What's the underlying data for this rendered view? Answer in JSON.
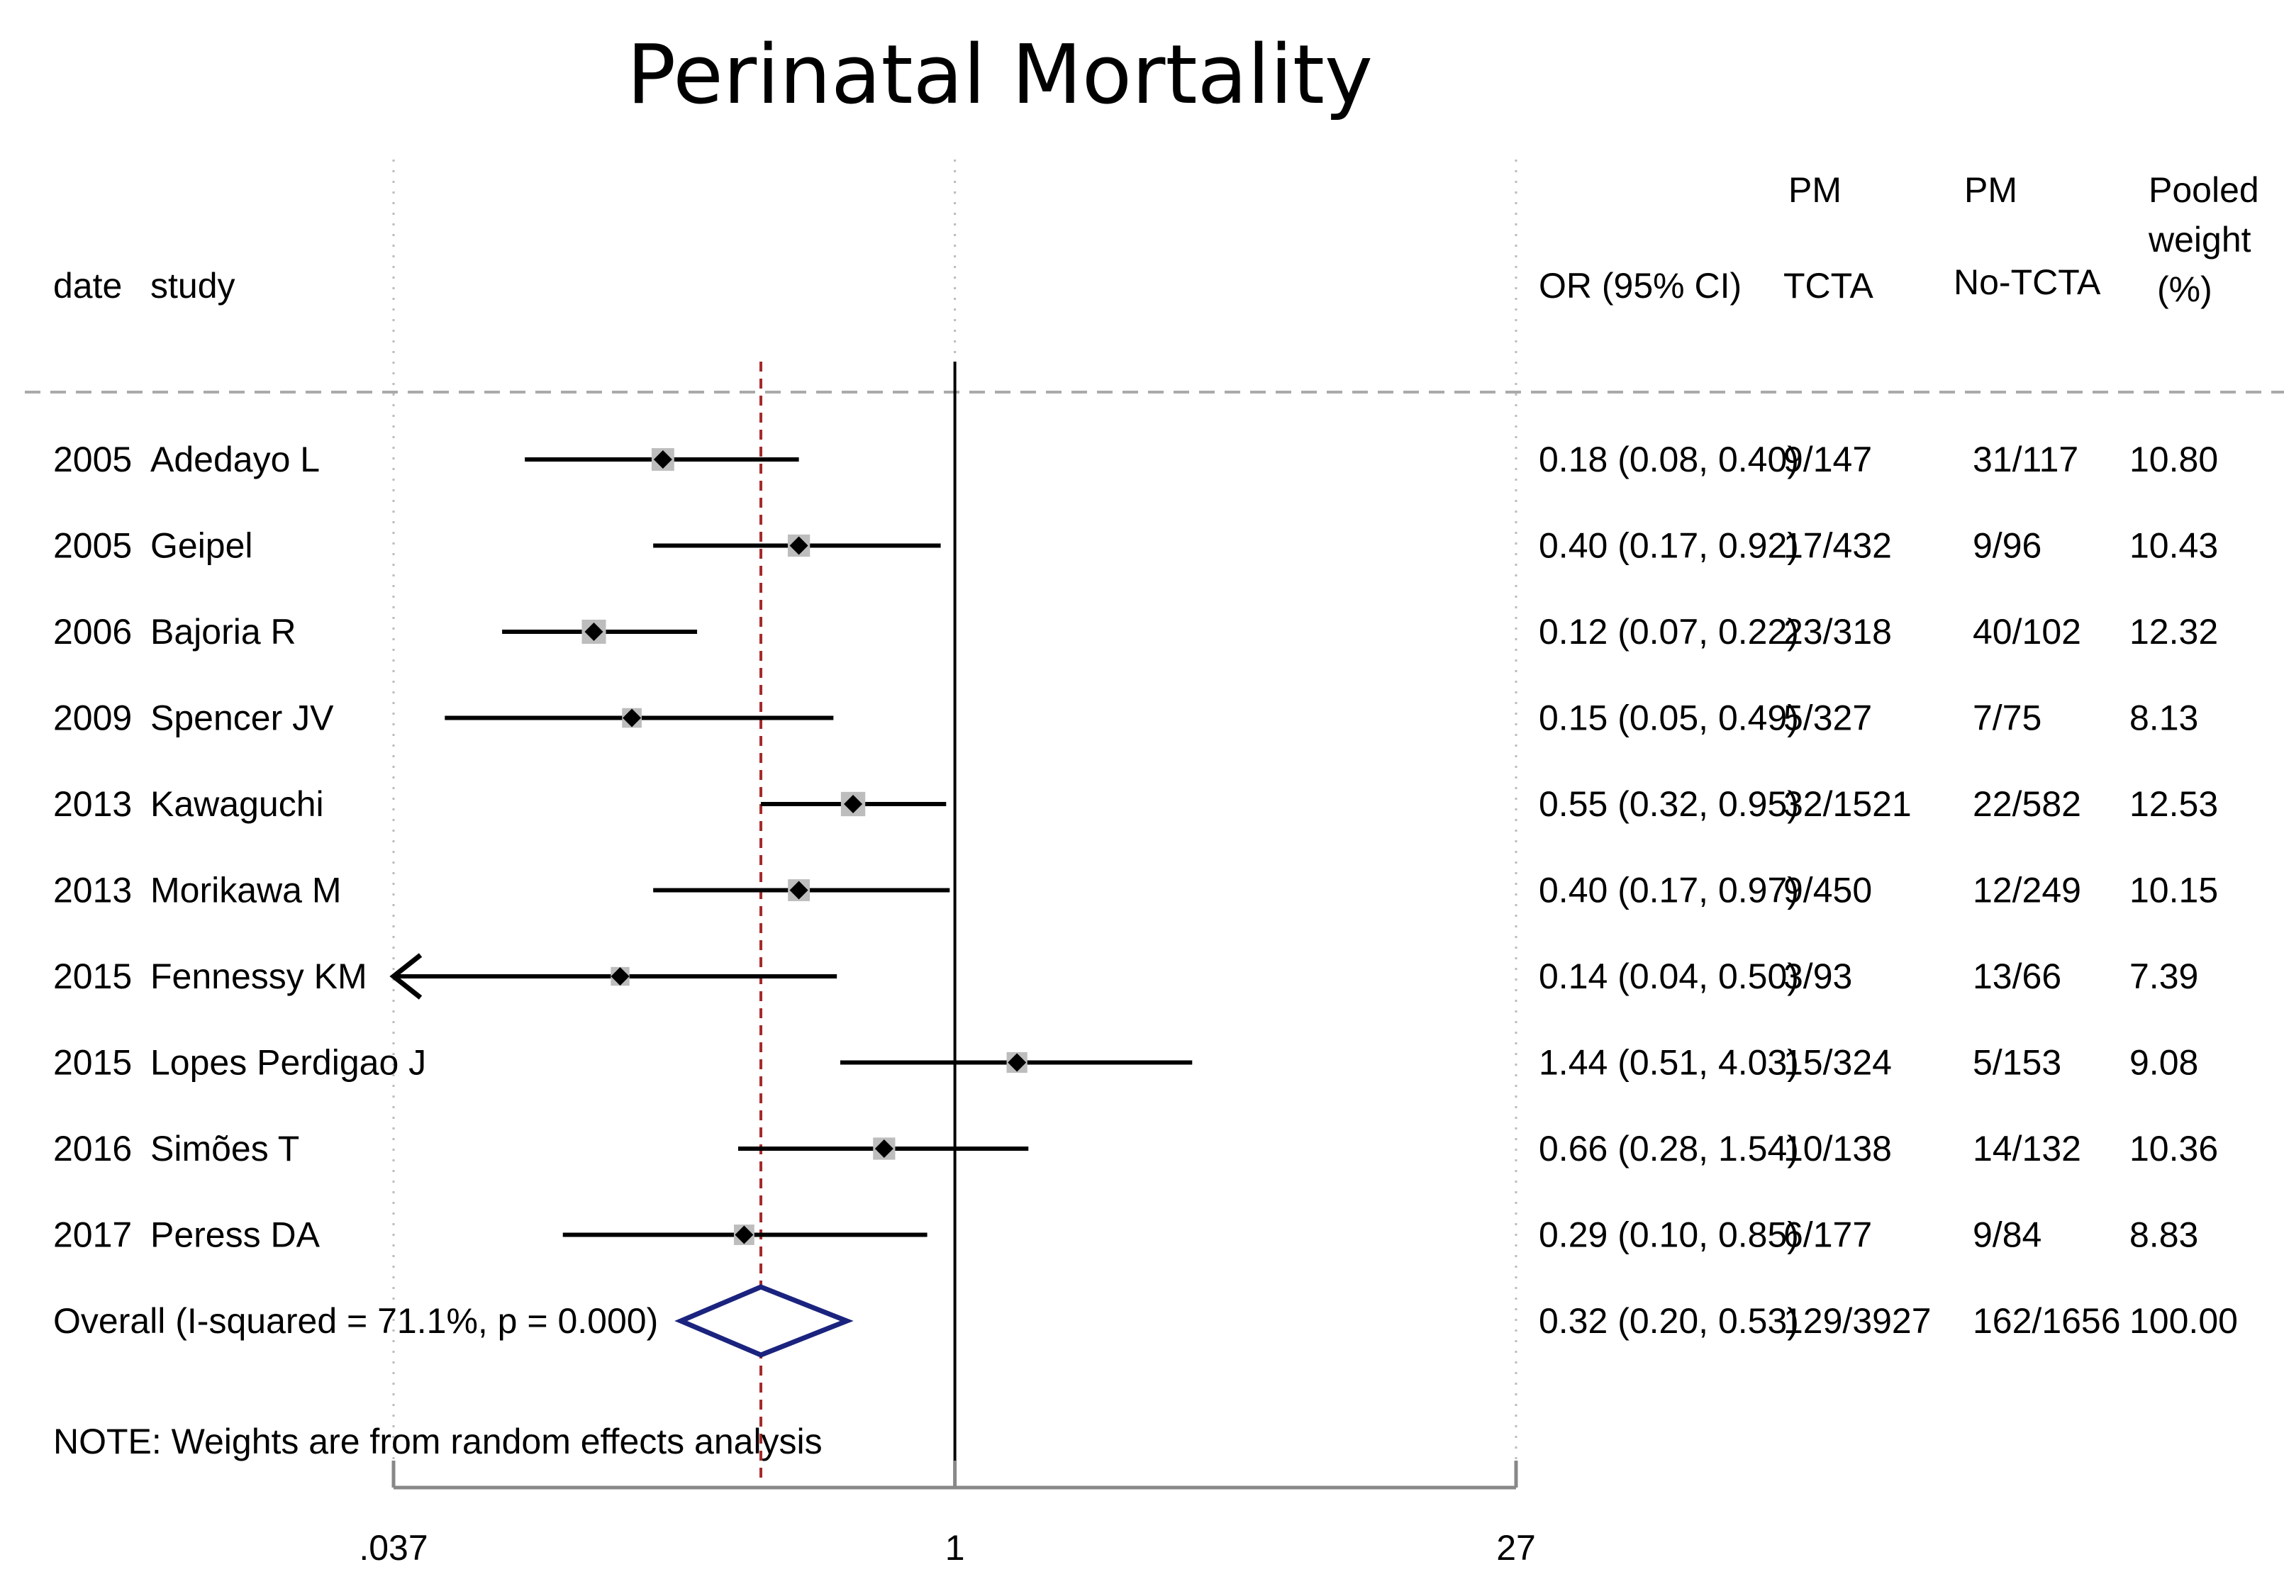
{
  "chart_data": {
    "type": "forest",
    "title": "Perinatal Mortality",
    "scale": "log",
    "xlim": [
      0.037,
      27
    ],
    "xticks": [
      {
        "value": 0.037,
        "label": ".037"
      },
      {
        "value": 1,
        "label": "1"
      },
      {
        "value": 27,
        "label": "27"
      }
    ],
    "null_line": 1,
    "overall_line": 0.32,
    "headers": {
      "date": "date",
      "study": "study",
      "or_ci": "OR (95% CI)",
      "pm_tcta": [
        "PM",
        "TCTA"
      ],
      "pm_no_tcta": [
        "PM",
        "No-TCTA"
      ],
      "weight": [
        "Pooled",
        "weight",
        "(%)"
      ]
    },
    "studies": [
      {
        "date": "2005",
        "study": "Adedayo L",
        "or": 0.18,
        "lo": 0.08,
        "hi": 0.4,
        "ci_text": "0.18 (0.08, 0.40)",
        "tcta": "9/147",
        "no_tcta": "31/117",
        "weight": "10.80",
        "weight_value": 10.8,
        "arrow_left": false
      },
      {
        "date": "2005",
        "study": "Geipel",
        "or": 0.4,
        "lo": 0.17,
        "hi": 0.92,
        "ci_text": "0.40 (0.17, 0.92)",
        "tcta": "17/432",
        "no_tcta": "9/96",
        "weight": "10.43",
        "weight_value": 10.43,
        "arrow_left": false
      },
      {
        "date": "2006",
        "study": "Bajoria R",
        "or": 0.12,
        "lo": 0.07,
        "hi": 0.22,
        "ci_text": "0.12 (0.07, 0.22)",
        "tcta": "23/318",
        "no_tcta": "40/102",
        "weight": "12.32",
        "weight_value": 12.32,
        "arrow_left": false
      },
      {
        "date": "2009",
        "study": "Spencer JV",
        "or": 0.15,
        "lo": 0.05,
        "hi": 0.49,
        "ci_text": "0.15 (0.05, 0.49)",
        "tcta": "5/327",
        "no_tcta": "7/75",
        "weight": "8.13",
        "weight_value": 8.13,
        "arrow_left": false
      },
      {
        "date": "2013",
        "study": "Kawaguchi",
        "or": 0.55,
        "lo": 0.32,
        "hi": 0.95,
        "ci_text": "0.55 (0.32, 0.95)",
        "tcta": "32/1521",
        "no_tcta": "22/582",
        "weight": "12.53",
        "weight_value": 12.53,
        "arrow_left": false
      },
      {
        "date": "2013",
        "study": "Morikawa M",
        "or": 0.4,
        "lo": 0.17,
        "hi": 0.97,
        "ci_text": "0.40 (0.17, 0.97)",
        "tcta": "9/450",
        "no_tcta": "12/249",
        "weight": "10.15",
        "weight_value": 10.15,
        "arrow_left": false
      },
      {
        "date": "2015",
        "study": "Fennessy KM",
        "or": 0.14,
        "lo": 0.04,
        "hi": 0.5,
        "ci_text": "0.14 (0.04, 0.50)",
        "tcta": "3/93",
        "no_tcta": "13/66",
        "weight": "7.39",
        "weight_value": 7.39,
        "arrow_left": true
      },
      {
        "date": "2015",
        "study": "Lopes Perdigao J",
        "or": 1.44,
        "lo": 0.51,
        "hi": 4.03,
        "ci_text": "1.44 (0.51, 4.03)",
        "tcta": "15/324",
        "no_tcta": "5/153",
        "weight": "9.08",
        "weight_value": 9.08,
        "arrow_left": false
      },
      {
        "date": "2016",
        "study": "Simões T",
        "or": 0.66,
        "lo": 0.28,
        "hi": 1.54,
        "ci_text": "0.66 (0.28, 1.54)",
        "tcta": "10/138",
        "no_tcta": "14/132",
        "weight": "10.36",
        "weight_value": 10.36,
        "arrow_left": false
      },
      {
        "date": "2017",
        "study": "Peress DA",
        "or": 0.29,
        "lo": 0.1,
        "hi": 0.85,
        "ci_text": "0.29 (0.10, 0.85)",
        "tcta": "6/177",
        "no_tcta": "9/84",
        "weight": "8.83",
        "weight_value": 8.83,
        "arrow_left": false
      }
    ],
    "overall": {
      "label": "Overall  (I-squared = 71.1%, p = 0.000)",
      "or": 0.32,
      "lo": 0.2,
      "hi": 0.53,
      "ci_text": "0.32 (0.20, 0.53)",
      "tcta": "129/3927",
      "no_tcta": "162/1656",
      "weight": "100.00"
    },
    "note": "NOTE: Weights are from random effects analysis",
    "colors": {
      "overall_diamond": "#1a237e",
      "overall_line": "#a52a2a",
      "weight_box": "#bdbdbd",
      "axis": "#888888",
      "gridline": "#bbbbbb"
    }
  }
}
